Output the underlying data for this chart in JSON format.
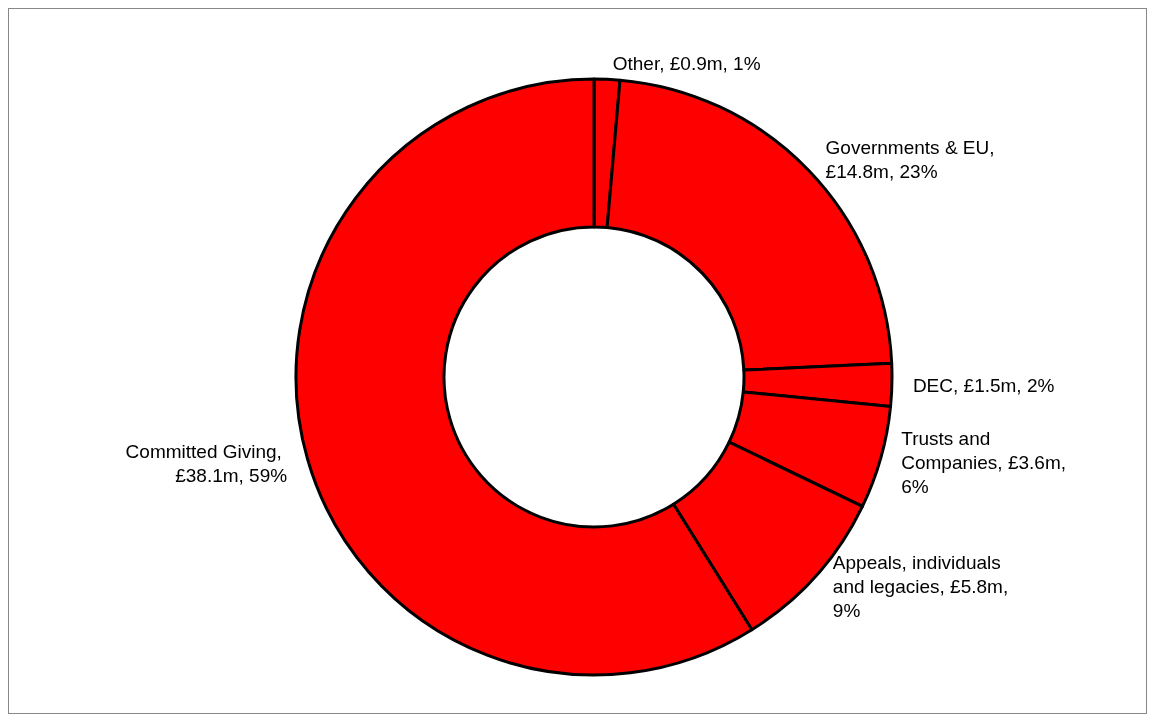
{
  "chart_data": {
    "type": "donut",
    "categories": [
      "Other, £0.9m, 1%",
      "Governments & EU, £14.8m, 23%",
      "DEC, £1.5m, 2%",
      "Trusts and Companies, £3.6m, 6%",
      "Appeals, individuals and legacies, £5.8m, 9%",
      "Committed Giving, £38.1m, 59%"
    ],
    "values": [
      0.9,
      14.8,
      1.5,
      3.6,
      5.8,
      38.1
    ],
    "colors": [
      "#ff0000",
      "#ff0000",
      "#ff0000",
      "#ff0000",
      "#ff0000",
      "#ff0000"
    ],
    "legend": false
  }
}
